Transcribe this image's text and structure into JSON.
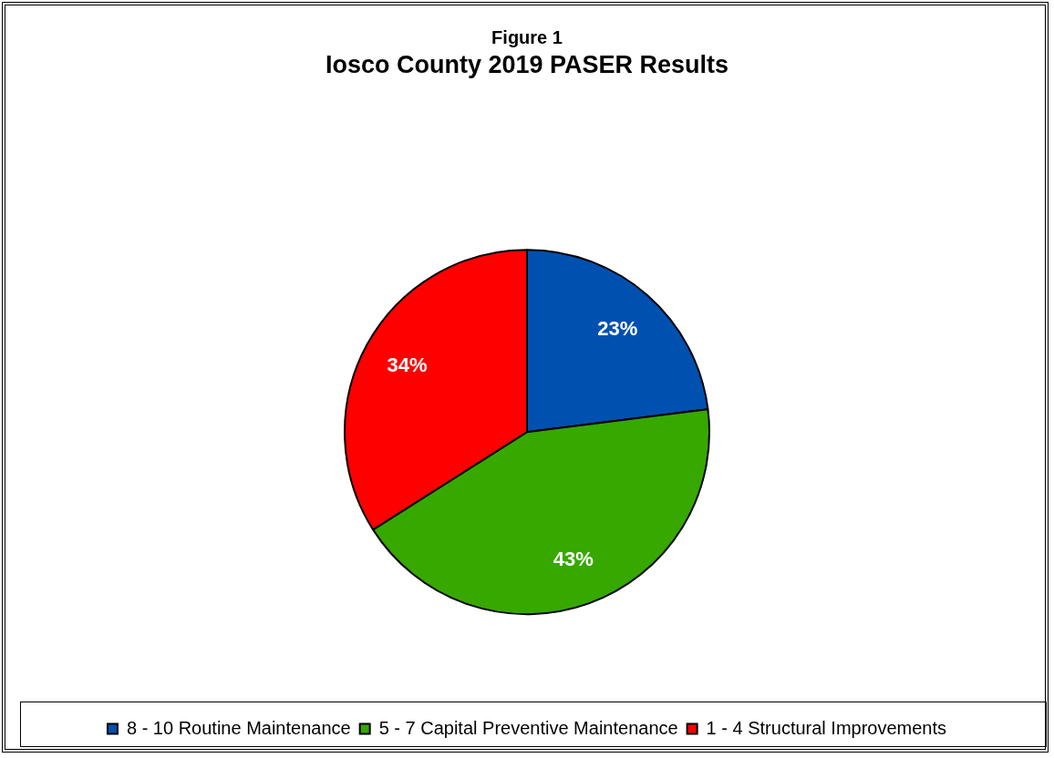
{
  "chart_data": {
    "type": "pie",
    "title": "Figure 1",
    "subtitle": "Iosco County 2019 PASER Results",
    "categories": [
      "8 - 10 Routine Maintenance",
      "5 - 7 Capital Preventive Maintenance",
      "1 - 4 Structural Improvements"
    ],
    "values": [
      23,
      43,
      34
    ],
    "colors": [
      "#0050b0",
      "#36a800",
      "#ff0000"
    ],
    "value_labels": [
      "23%",
      "43%",
      "34%"
    ],
    "legend": "bottom"
  }
}
